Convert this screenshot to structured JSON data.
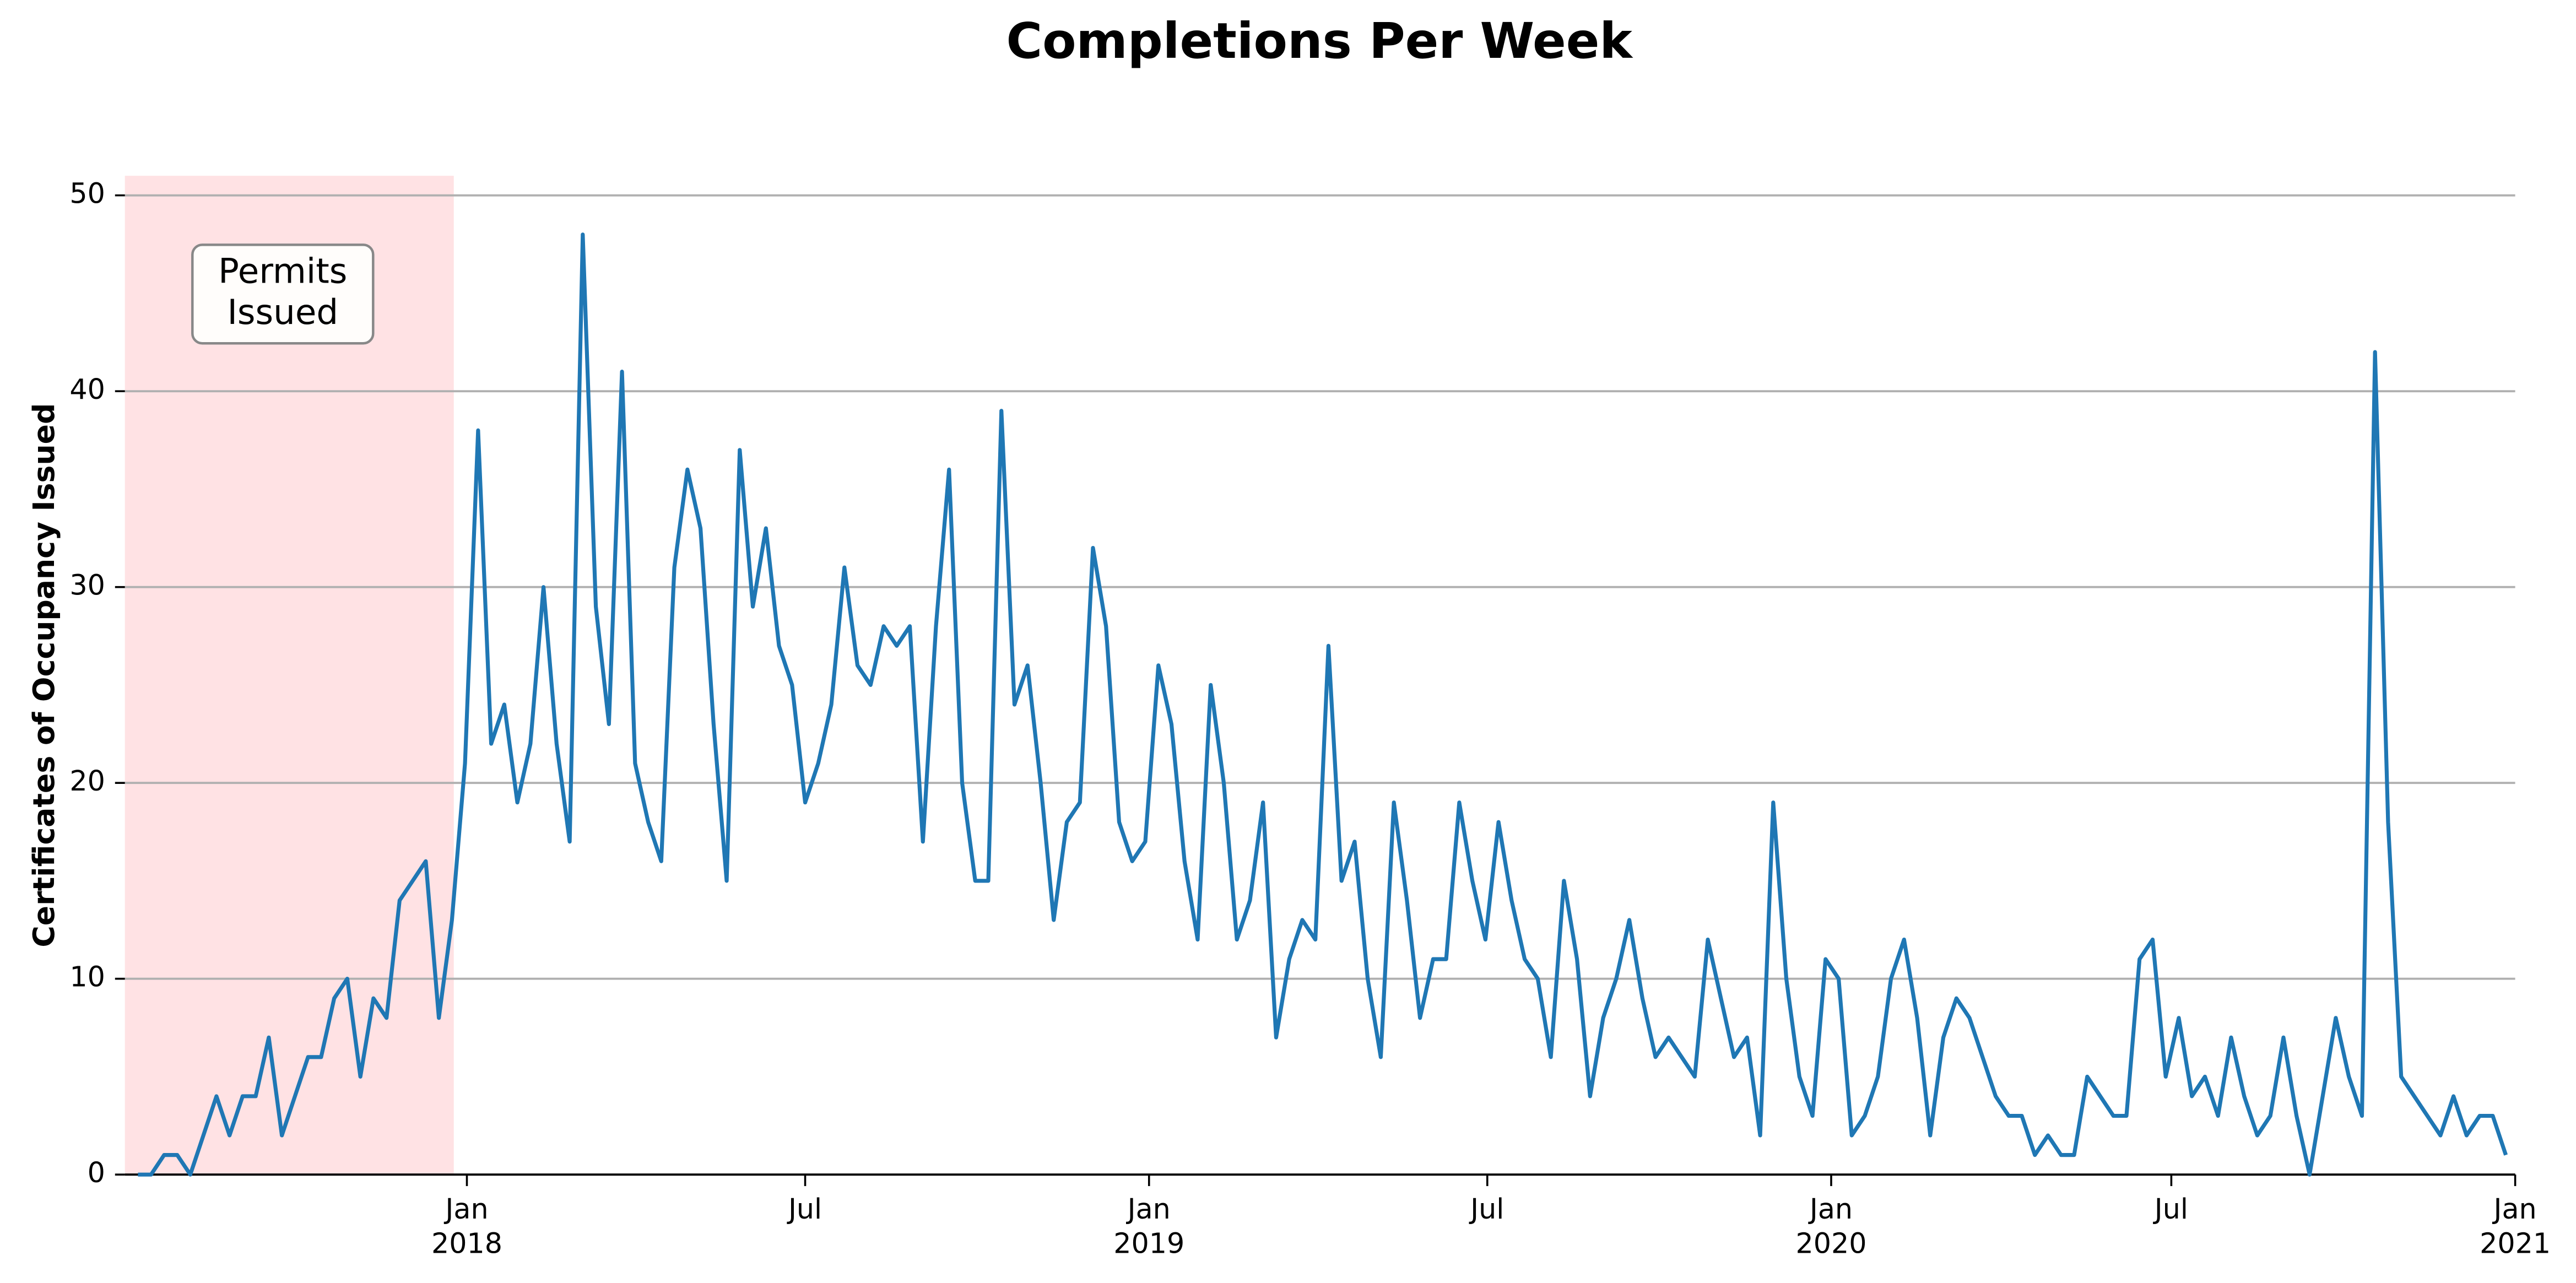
{
  "chart_data": {
    "type": "line",
    "title": "Completions Per Week",
    "ylabel": "Certificates of Occupancy Issued",
    "xlim": [
      "2017-07-02",
      "2021-01-01"
    ],
    "xticks": [
      {
        "value": "2018-01-01",
        "label": "Jan\n2018"
      },
      {
        "value": "2018-07-01",
        "label": "Jul"
      },
      {
        "value": "2019-01-01",
        "label": "Jan\n2019"
      },
      {
        "value": "2019-07-01",
        "label": "Jul"
      },
      {
        "value": "2020-01-01",
        "label": "Jan\n2020"
      },
      {
        "value": "2020-07-01",
        "label": "Jul"
      },
      {
        "value": "2021-01-01",
        "label": "Jan\n2021"
      }
    ],
    "ylim": [
      0,
      51
    ],
    "yticks": [
      0,
      10,
      20,
      30,
      40,
      50
    ],
    "grid": true,
    "shaded_region": {
      "start": "2017-07-02",
      "end": "2017-12-25",
      "color": "#ffe0e3",
      "label": "Permits\nIssued"
    },
    "x": [
      "2017-07-09",
      "2017-07-16",
      "2017-07-23",
      "2017-07-30",
      "2017-08-06",
      "2017-08-13",
      "2017-08-20",
      "2017-08-27",
      "2017-09-03",
      "2017-09-10",
      "2017-09-17",
      "2017-09-24",
      "2017-10-01",
      "2017-10-08",
      "2017-10-15",
      "2017-10-22",
      "2017-10-29",
      "2017-11-05",
      "2017-11-12",
      "2017-11-19",
      "2017-11-26",
      "2017-12-03",
      "2017-12-10",
      "2017-12-17",
      "2017-12-24",
      "2017-12-31",
      "2018-01-07",
      "2018-01-14",
      "2018-01-21",
      "2018-01-28",
      "2018-02-04",
      "2018-02-11",
      "2018-02-18",
      "2018-02-25",
      "2018-03-04",
      "2018-03-11",
      "2018-03-18",
      "2018-03-25",
      "2018-04-01",
      "2018-04-08",
      "2018-04-15",
      "2018-04-22",
      "2018-04-29",
      "2018-05-06",
      "2018-05-13",
      "2018-05-20",
      "2018-05-27",
      "2018-06-03",
      "2018-06-10",
      "2018-06-17",
      "2018-06-24",
      "2018-07-01",
      "2018-07-08",
      "2018-07-15",
      "2018-07-22",
      "2018-07-29",
      "2018-08-05",
      "2018-08-12",
      "2018-08-19",
      "2018-08-26",
      "2018-09-02",
      "2018-09-09",
      "2018-09-16",
      "2018-09-23",
      "2018-09-30",
      "2018-10-07",
      "2018-10-14",
      "2018-10-21",
      "2018-10-28",
      "2018-11-04",
      "2018-11-11",
      "2018-11-18",
      "2018-11-25",
      "2018-12-02",
      "2018-12-09",
      "2018-12-16",
      "2018-12-23",
      "2018-12-30",
      "2019-01-06",
      "2019-01-13",
      "2019-01-20",
      "2019-01-27",
      "2019-02-03",
      "2019-02-10",
      "2019-02-17",
      "2019-02-24",
      "2019-03-03",
      "2019-03-10",
      "2019-03-17",
      "2019-03-24",
      "2019-03-31",
      "2019-04-07",
      "2019-04-14",
      "2019-04-21",
      "2019-04-28",
      "2019-05-05",
      "2019-05-12",
      "2019-05-19",
      "2019-05-26",
      "2019-06-02",
      "2019-06-09",
      "2019-06-16",
      "2019-06-23",
      "2019-06-30",
      "2019-07-07",
      "2019-07-14",
      "2019-07-21",
      "2019-07-28",
      "2019-08-04",
      "2019-08-11",
      "2019-08-18",
      "2019-08-25",
      "2019-09-01",
      "2019-09-08",
      "2019-09-15",
      "2019-09-22",
      "2019-09-29",
      "2019-10-06",
      "2019-10-13",
      "2019-10-20",
      "2019-10-27",
      "2019-11-03",
      "2019-11-10",
      "2019-11-17",
      "2019-11-24",
      "2019-12-01",
      "2019-12-08",
      "2019-12-15",
      "2019-12-22",
      "2019-12-29",
      "2020-01-05",
      "2020-01-12",
      "2020-01-19",
      "2020-01-26",
      "2020-02-02",
      "2020-02-09",
      "2020-02-16",
      "2020-02-23",
      "2020-03-01",
      "2020-03-08",
      "2020-03-15",
      "2020-03-22",
      "2020-03-29",
      "2020-04-05",
      "2020-04-12",
      "2020-04-19",
      "2020-04-26",
      "2020-05-03",
      "2020-05-10",
      "2020-05-17",
      "2020-05-24",
      "2020-05-31",
      "2020-06-07",
      "2020-06-14",
      "2020-06-21",
      "2020-06-28",
      "2020-07-05",
      "2020-07-12",
      "2020-07-19",
      "2020-07-26",
      "2020-08-02",
      "2020-08-09",
      "2020-08-16",
      "2020-08-23",
      "2020-08-30",
      "2020-09-06",
      "2020-09-13",
      "2020-09-20",
      "2020-09-27",
      "2020-10-04",
      "2020-10-11",
      "2020-10-18",
      "2020-10-25",
      "2020-11-01",
      "2020-11-08",
      "2020-11-15",
      "2020-11-22",
      "2020-11-29",
      "2020-12-06",
      "2020-12-13",
      "2020-12-20",
      "2020-12-27"
    ],
    "series": [
      {
        "color": "#1f77b4",
        "values": [
          0,
          0,
          1,
          1,
          0,
          2,
          4,
          2,
          4,
          4,
          7,
          2,
          4,
          6,
          6,
          9,
          10,
          5,
          9,
          8,
          14,
          15,
          16,
          8,
          13,
          21,
          38,
          22,
          24,
          19,
          22,
          30,
          22,
          17,
          48,
          29,
          23,
          41,
          21,
          18,
          16,
          31,
          36,
          33,
          23,
          15,
          37,
          29,
          33,
          27,
          25,
          19,
          21,
          24,
          31,
          26,
          25,
          28,
          27,
          28,
          17,
          28,
          36,
          20,
          15,
          15,
          39,
          24,
          26,
          20,
          13,
          18,
          19,
          32,
          28,
          18,
          16,
          17,
          26,
          23,
          16,
          12,
          25,
          20,
          12,
          14,
          19,
          7,
          11,
          13,
          12,
          27,
          15,
          17,
          10,
          6,
          19,
          14,
          8,
          11,
          11,
          19,
          15,
          12,
          18,
          14,
          11,
          10,
          6,
          15,
          11,
          4,
          8,
          10,
          13,
          9,
          6,
          7,
          6,
          5,
          12,
          9,
          6,
          7,
          2,
          19,
          10,
          5,
          3,
          11,
          10,
          2,
          3,
          5,
          10,
          12,
          8,
          2,
          7,
          9,
          8,
          6,
          4,
          3,
          3,
          1,
          2,
          1,
          1,
          5,
          4,
          3,
          3,
          11,
          12,
          5,
          8,
          4,
          5,
          3,
          7,
          4,
          2,
          3,
          7,
          3,
          0,
          4,
          8,
          5,
          3,
          42,
          18,
          5,
          4,
          3,
          2,
          4,
          2,
          3,
          3,
          1
        ]
      }
    ]
  }
}
